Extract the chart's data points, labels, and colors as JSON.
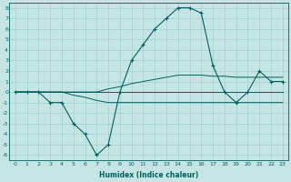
{
  "xlabel": "Humidex (Indice chaleur)",
  "bg_color": "#c5e5e5",
  "grid_color": "#9dcfcf",
  "line_color": "#006060",
  "xlim": [
    -0.5,
    23.5
  ],
  "ylim": [
    -6.5,
    8.5
  ],
  "xticks": [
    0,
    1,
    2,
    3,
    4,
    5,
    6,
    7,
    8,
    9,
    10,
    11,
    12,
    13,
    14,
    15,
    16,
    17,
    18,
    19,
    20,
    21,
    22,
    23
  ],
  "yticks": [
    8,
    7,
    6,
    5,
    4,
    3,
    2,
    1,
    0,
    -1,
    -2,
    -3,
    -4,
    -5,
    -6
  ],
  "series": [
    {
      "x": [
        0,
        1,
        2,
        3,
        4,
        5,
        6,
        7,
        8,
        9,
        10,
        11,
        12,
        13,
        14,
        15,
        16,
        17,
        18,
        19,
        20,
        21,
        22,
        23
      ],
      "y": [
        0,
        0,
        0,
        -1,
        -1,
        -3,
        -4,
        -6,
        -5,
        0,
        3,
        4.5,
        6,
        7,
        8,
        8,
        7.5,
        2.5,
        0,
        -1,
        0,
        2,
        1,
        1
      ],
      "marker": "+"
    },
    {
      "x": [
        0,
        1,
        2,
        3,
        4,
        5,
        6,
        7,
        8,
        9,
        10,
        11,
        12,
        13,
        14,
        15,
        16,
        17,
        18,
        19,
        20,
        21,
        22,
        23
      ],
      "y": [
        0,
        0,
        0,
        0,
        0,
        0,
        0,
        0,
        0,
        0,
        0,
        0,
        0,
        0,
        0,
        0,
        0,
        0,
        0,
        0,
        0,
        0,
        0,
        0
      ],
      "marker": null
    },
    {
      "x": [
        0,
        1,
        2,
        3,
        4,
        5,
        6,
        7,
        8,
        9,
        10,
        11,
        12,
        13,
        14,
        15,
        16,
        17,
        18,
        19,
        20,
        21,
        22,
        23
      ],
      "y": [
        0,
        0,
        0,
        0,
        0,
        0,
        0,
        0,
        0.3,
        0.5,
        0.8,
        1.0,
        1.2,
        1.4,
        1.6,
        1.6,
        1.6,
        1.5,
        1.5,
        1.4,
        1.4,
        1.4,
        1.4,
        1.4
      ],
      "marker": null
    },
    {
      "x": [
        0,
        1,
        2,
        3,
        4,
        5,
        6,
        7,
        8,
        9,
        10,
        11,
        12,
        13,
        14,
        15,
        16,
        17,
        18,
        19,
        20,
        21,
        22,
        23
      ],
      "y": [
        0,
        0,
        0,
        0,
        0,
        -0.3,
        -0.5,
        -0.8,
        -1.0,
        -1.0,
        -1.0,
        -1.0,
        -1.0,
        -1.0,
        -1.0,
        -1.0,
        -1.0,
        -1.0,
        -1.0,
        -1.0,
        -1.0,
        -1.0,
        -1.0,
        -1.0
      ],
      "marker": null
    }
  ]
}
